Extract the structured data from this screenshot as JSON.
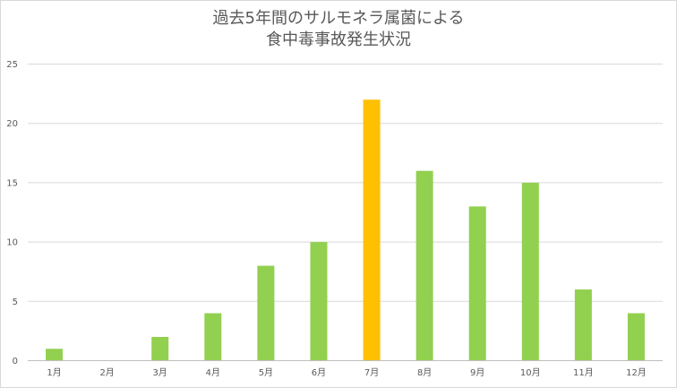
{
  "chart_data": {
    "type": "bar",
    "title_lines": [
      "過去5年間のサルモネラ属菌による",
      "食中毒事故発生状況"
    ],
    "categories": [
      "1月",
      "2月",
      "3月",
      "4月",
      "5月",
      "6月",
      "7月",
      "8月",
      "9月",
      "10月",
      "11月",
      "12月"
    ],
    "values": [
      1,
      0,
      2,
      4,
      8,
      10,
      22,
      16,
      13,
      15,
      6,
      4
    ],
    "ylim": [
      0,
      25
    ],
    "yticks": [
      0,
      5,
      10,
      15,
      20,
      25
    ],
    "grid": true,
    "legend": "none",
    "bar_color": "#92d050",
    "highlight_color": "#ffc000",
    "highlight_category": "7月",
    "gridline_color": "#d9d9d9",
    "axis_color": "#bfbfbf"
  }
}
